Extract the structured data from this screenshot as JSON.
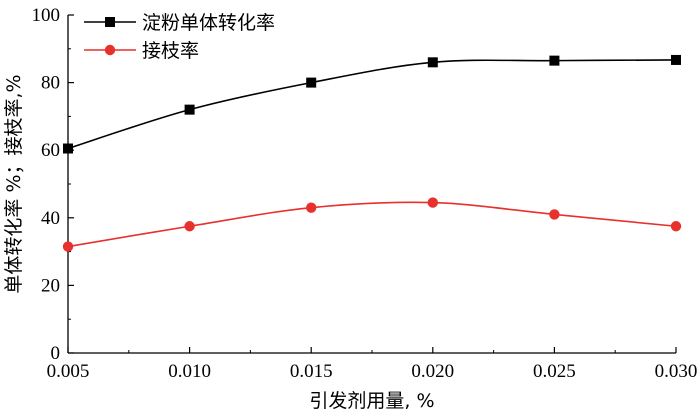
{
  "chart_data": {
    "type": "line",
    "xlabel": "引发剂用量, %",
    "ylabel": "单体转化率 %；接枝率,%",
    "xlim": [
      0.005,
      0.03
    ],
    "ylim": [
      0,
      100
    ],
    "x_ticks": [
      "0.005",
      "0.010",
      "0.015",
      "0.020",
      "0.025",
      "0.030"
    ],
    "y_ticks": [
      "0",
      "20",
      "40",
      "60",
      "80",
      "100"
    ],
    "grid": false,
    "legend_position": "top-left",
    "x": [
      0.005,
      0.01,
      0.015,
      0.02,
      0.025,
      0.03
    ],
    "series": [
      {
        "name": "淀粉单体转化率",
        "values": [
          60.5,
          72,
          80,
          86,
          86.5,
          86.7
        ],
        "color": "#000000",
        "marker": "square"
      },
      {
        "name": "接枝率",
        "values": [
          31.5,
          37.5,
          43,
          44.5,
          41,
          37.5
        ],
        "color": "#e8302c",
        "marker": "circle"
      }
    ]
  }
}
